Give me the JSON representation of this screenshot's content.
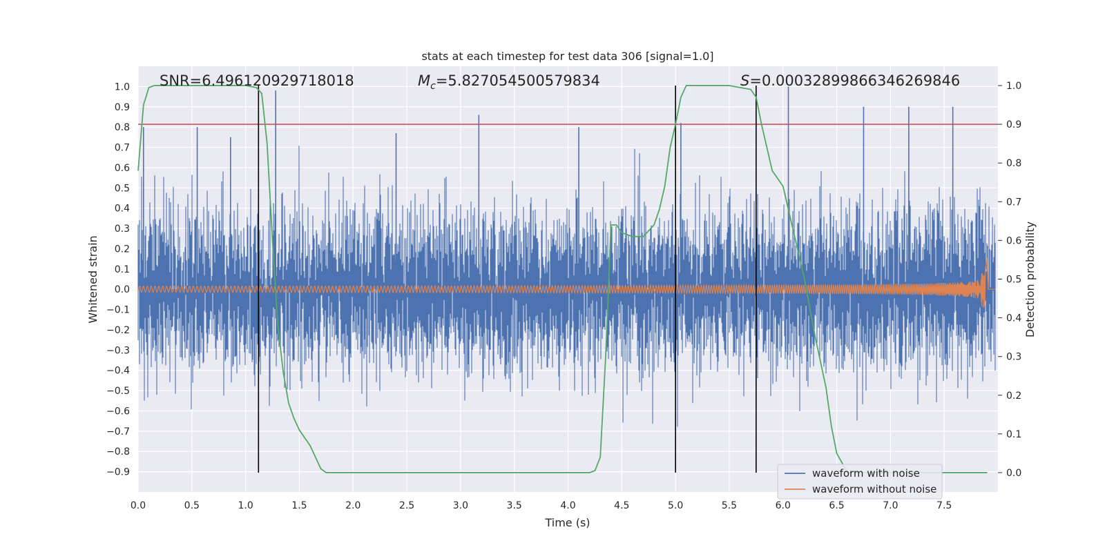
{
  "chart_data": {
    "type": "line",
    "title": "stats at each timestep for test data 306 [signal=1.0]",
    "xlabel": "Time (s)",
    "ylabel": "Whitened strain",
    "ylabel_right": "Detection probability",
    "xlim": [
      0.0,
      8.0
    ],
    "ylim": [
      -1.0,
      1.1
    ],
    "ylim_right": [
      -0.05,
      1.05
    ],
    "x_ticks": [
      "0.0",
      "0.5",
      "1.0",
      "1.5",
      "2.0",
      "2.5",
      "3.0",
      "3.5",
      "4.0",
      "4.5",
      "5.0",
      "5.5",
      "6.0",
      "6.5",
      "7.0",
      "7.5"
    ],
    "y_ticks": [
      "1.0",
      "0.9",
      "0.8",
      "0.7",
      "0.6",
      "0.5",
      "0.4",
      "0.3",
      "0.2",
      "0.1",
      "0.0",
      "−0.1",
      "−0.2",
      "−0.3",
      "−0.4",
      "−0.5",
      "−0.6",
      "−0.7",
      "−0.8",
      "−0.9"
    ],
    "y_ticks_right": [
      "1.0",
      "0.9",
      "0.8",
      "0.7",
      "0.6",
      "0.5",
      "0.4",
      "0.3",
      "0.2",
      "0.1",
      "0.0"
    ],
    "grid": true,
    "legend_position": "lower-right",
    "annotations": {
      "snr": "SNR=6.496120929718018",
      "mc_symbol": "M",
      "mc_sub": "c",
      "mc_value": "=5.827054500579834",
      "s_symbol": "S",
      "s_value": "=0.00032899866346269846"
    },
    "threshold_right": 0.9,
    "vertical_markers": [
      1.12,
      5.0,
      5.75
    ],
    "series": [
      {
        "name": "waveform with noise",
        "color": "#4c72b0",
        "description_peaks_x": [
          0.05,
          0.55,
          0.86,
          1.28,
          2.4,
          3.17,
          4.1,
          5.05,
          6.05,
          6.75,
          7.17,
          7.58
        ],
        "description_peaks_y": [
          0.8,
          0.8,
          0.75,
          0.98,
          0.77,
          0.86,
          0.8,
          0.82,
          1.0,
          0.9,
          0.9,
          0.9
        ],
        "amplitude_std": 0.19
      },
      {
        "name": "waveform without noise",
        "color": "#dd8452",
        "chirp_end": 7.9,
        "start_amplitude": 0.015,
        "peak_amplitude": 0.22
      },
      {
        "name": "detection probability",
        "color": "#55a868",
        "axis": "right",
        "x": [
          0.0,
          0.05,
          0.1,
          0.15,
          0.2,
          0.3,
          0.5,
          0.8,
          1.0,
          1.1,
          1.15,
          1.2,
          1.25,
          1.3,
          1.35,
          1.4,
          1.45,
          1.5,
          1.6,
          1.7,
          1.75,
          1.8,
          2.0,
          3.0,
          4.0,
          4.2,
          4.25,
          4.3,
          4.35,
          4.4,
          4.45,
          4.5,
          4.6,
          4.7,
          4.8,
          4.85,
          4.9,
          4.95,
          5.0,
          5.05,
          5.1,
          5.2,
          5.5,
          5.7,
          5.75,
          5.8,
          5.9,
          6.0,
          6.1,
          6.2,
          6.3,
          6.4,
          6.45,
          6.5,
          6.6,
          7.0,
          7.5,
          7.9
        ],
        "y": [
          0.78,
          0.95,
          0.995,
          1.0,
          1.0,
          1.0,
          1.0,
          1.0,
          1.0,
          0.995,
          0.98,
          0.85,
          0.6,
          0.38,
          0.26,
          0.18,
          0.14,
          0.11,
          0.07,
          0.01,
          0.0,
          0.0,
          0.0,
          0.0,
          0.0,
          0.0,
          0.005,
          0.04,
          0.3,
          0.64,
          0.64,
          0.62,
          0.61,
          0.61,
          0.64,
          0.68,
          0.74,
          0.84,
          0.9,
          0.97,
          1.0,
          1.0,
          1.0,
          0.99,
          0.97,
          0.9,
          0.78,
          0.74,
          0.62,
          0.5,
          0.35,
          0.22,
          0.12,
          0.05,
          0.0,
          0.0,
          0.0,
          0.0
        ]
      }
    ]
  }
}
